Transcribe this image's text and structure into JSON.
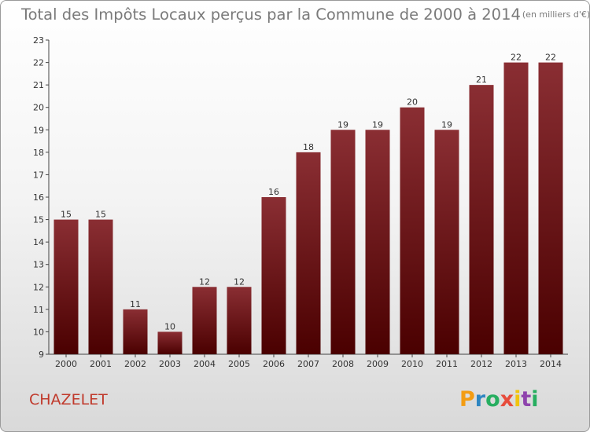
{
  "chart_data": {
    "type": "bar",
    "title": "Total des Impôts Locaux perçus par la Commune de 2000 à 2014",
    "subtitle": "(en milliers d'€)",
    "categories": [
      "2000",
      "2001",
      "2002",
      "2003",
      "2004",
      "2005",
      "2006",
      "2007",
      "2008",
      "2009",
      "2010",
      "2011",
      "2012",
      "2013",
      "2014"
    ],
    "values": [
      15,
      15,
      11,
      10,
      12,
      12,
      16,
      18,
      19,
      19,
      20,
      19,
      21,
      22,
      22
    ],
    "xlabel": "",
    "ylabel": "",
    "ylim": [
      9,
      23
    ],
    "yticks": [
      9,
      10,
      11,
      12,
      13,
      14,
      15,
      16,
      17,
      18,
      19,
      20,
      21,
      22,
      23
    ],
    "grid": false,
    "bar_color": "#7a1a1c"
  },
  "commune_name": "CHAZELET",
  "logo": {
    "letters": [
      "P",
      "r",
      "o",
      "x",
      "i",
      "t",
      "i"
    ],
    "colors": [
      "#f39c12",
      "#2e86c1",
      "#27ae60",
      "#e74c3c",
      "#f1c40f",
      "#8e44ad",
      "#27ae60"
    ]
  }
}
